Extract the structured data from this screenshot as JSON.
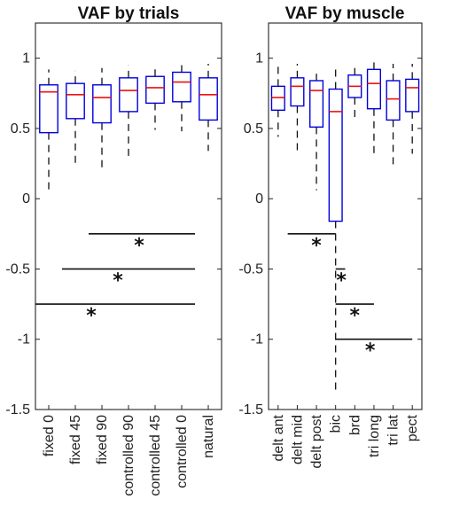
{
  "colors": {
    "box": "#0000dd",
    "median": "#ee1111",
    "whisker": "#111111"
  },
  "chart_data": [
    {
      "type": "box",
      "title": "VAF by trials",
      "xlabel": "",
      "ylabel": "",
      "ylim": [
        -1.5,
        1.25
      ],
      "yticks": [
        -1.5,
        -1,
        -0.5,
        0,
        0.5,
        1
      ],
      "ytick_labels": [
        "-1.5",
        "-1",
        "-0.5",
        "0",
        "0.5",
        "1"
      ],
      "grid": false,
      "categories": [
        "fixed 0",
        "fixed 45",
        "fixed 90",
        "controlled 90",
        "controlled 45",
        "controlled 0",
        "natural"
      ],
      "boxes": [
        {
          "min": 0.03,
          "q1": 0.47,
          "median": 0.76,
          "q3": 0.81,
          "max": 0.92
        },
        {
          "min": 0.23,
          "q1": 0.57,
          "median": 0.74,
          "q3": 0.82,
          "max": 0.91
        },
        {
          "min": 0.2,
          "q1": 0.54,
          "median": 0.72,
          "q3": 0.81,
          "max": 0.93
        },
        {
          "min": 0.3,
          "q1": 0.62,
          "median": 0.77,
          "q3": 0.86,
          "max": 0.95
        },
        {
          "min": 0.49,
          "q1": 0.68,
          "median": 0.79,
          "q3": 0.87,
          "max": 0.95
        },
        {
          "min": 0.48,
          "q1": 0.69,
          "median": 0.83,
          "q3": 0.9,
          "max": 0.97
        },
        {
          "min": 0.34,
          "q1": 0.56,
          "median": 0.74,
          "q3": 0.86,
          "max": 0.96
        }
      ],
      "significance": [
        {
          "from": 1.5,
          "to": 5.5,
          "y": -0.25,
          "label": "*",
          "label_at": 3.4
        },
        {
          "from": 0.5,
          "to": 5.5,
          "y": -0.5,
          "label": "*",
          "label_at": 2.6
        },
        {
          "from": -0.5,
          "to": 5.5,
          "y": -0.75,
          "label": "*",
          "label_at": 1.6
        }
      ]
    },
    {
      "type": "box",
      "title": "VAF by muscle",
      "xlabel": "",
      "ylabel": "",
      "ylim": [
        -1.5,
        1.25
      ],
      "yticks": [
        -1.5,
        -1,
        -0.5,
        0,
        0.5,
        1
      ],
      "ytick_labels": [
        "-1.5",
        "-1",
        "-0.5",
        "0",
        "0.5",
        "1"
      ],
      "grid": false,
      "categories": [
        "delt ant",
        "delt mid",
        "delt post",
        "bic",
        "brd",
        "tri long",
        "tri lat",
        "pect"
      ],
      "boxes": [
        {
          "min": 0.44,
          "q1": 0.63,
          "median": 0.72,
          "q3": 0.8,
          "max": 0.95
        },
        {
          "min": 0.34,
          "q1": 0.66,
          "median": 0.8,
          "q3": 0.86,
          "max": 0.96
        },
        {
          "min": 0.06,
          "q1": 0.51,
          "median": 0.77,
          "q3": 0.84,
          "max": 0.89
        },
        {
          "min": -1.36,
          "q1": -0.16,
          "median": 0.62,
          "q3": 0.78,
          "max": 0.94
        },
        {
          "min": 0.55,
          "q1": 0.72,
          "median": 0.8,
          "q3": 0.88,
          "max": 0.94
        },
        {
          "min": 0.32,
          "q1": 0.64,
          "median": 0.82,
          "q3": 0.92,
          "max": 0.97
        },
        {
          "min": 0.24,
          "q1": 0.56,
          "median": 0.71,
          "q3": 0.84,
          "max": 0.96
        },
        {
          "min": 0.32,
          "q1": 0.62,
          "median": 0.79,
          "q3": 0.85,
          "max": 0.96
        }
      ],
      "significance": [
        {
          "from": 0.5,
          "to": 3.0,
          "y": -0.25,
          "label": "*",
          "label_at": 2.0
        },
        {
          "from": 3.0,
          "to": 3.5,
          "y": -0.5,
          "label": "*",
          "label_at": 3.3
        },
        {
          "from": 3.0,
          "to": 5.0,
          "y": -0.75,
          "label": "*",
          "label_at": 4.0
        },
        {
          "from": 3.0,
          "to": 7.0,
          "y": -1.0,
          "label": "*",
          "label_at": 4.8
        }
      ]
    }
  ]
}
